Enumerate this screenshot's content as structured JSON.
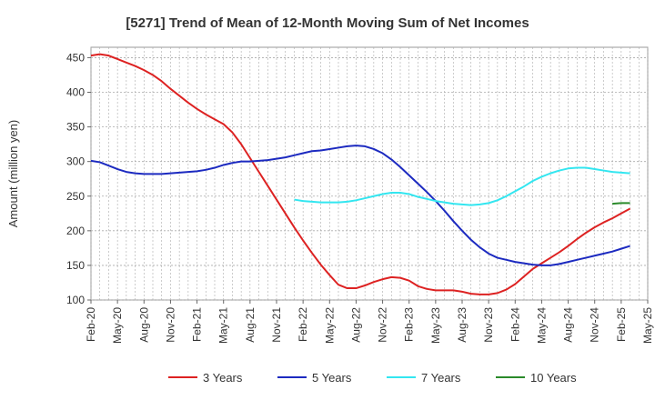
{
  "chart_data": {
    "type": "line",
    "title": "[5271]  Trend of Mean of 12-Month Moving Sum of Net Incomes",
    "xlabel": "",
    "ylabel": "Amount (million yen)",
    "ylim": [
      100,
      465
    ],
    "yticks": [
      100,
      150,
      200,
      250,
      300,
      350,
      400,
      450
    ],
    "xlim": [
      "2020-02",
      "2025-05"
    ],
    "xticks": [
      "Feb-20",
      "May-20",
      "Aug-20",
      "Nov-20",
      "Feb-21",
      "May-21",
      "Aug-21",
      "Nov-21",
      "Feb-22",
      "May-22",
      "Aug-22",
      "Nov-22",
      "Feb-23",
      "May-23",
      "Aug-23",
      "Nov-23",
      "Feb-24",
      "May-24",
      "Aug-24",
      "Nov-24",
      "Feb-25",
      "May-25"
    ],
    "grid": true,
    "legend_position": "bottom",
    "series": [
      {
        "name": "3 Years",
        "color": "#dd2222",
        "points": [
          [
            "2020-02",
            453
          ],
          [
            "2020-03",
            455
          ],
          [
            "2020-04",
            453
          ],
          [
            "2020-05",
            448
          ],
          [
            "2020-06",
            443
          ],
          [
            "2020-07",
            438
          ],
          [
            "2020-08",
            432
          ],
          [
            "2020-09",
            425
          ],
          [
            "2020-10",
            416
          ],
          [
            "2020-11",
            405
          ],
          [
            "2020-12",
            395
          ],
          [
            "2021-01",
            385
          ],
          [
            "2021-02",
            376
          ],
          [
            "2021-03",
            368
          ],
          [
            "2021-04",
            361
          ],
          [
            "2021-05",
            354
          ],
          [
            "2021-06",
            342
          ],
          [
            "2021-07",
            325
          ],
          [
            "2021-08",
            305
          ],
          [
            "2021-09",
            285
          ],
          [
            "2021-10",
            265
          ],
          [
            "2021-11",
            245
          ],
          [
            "2021-12",
            225
          ],
          [
            "2022-01",
            205
          ],
          [
            "2022-02",
            186
          ],
          [
            "2022-03",
            168
          ],
          [
            "2022-04",
            151
          ],
          [
            "2022-05",
            136
          ],
          [
            "2022-06",
            122
          ],
          [
            "2022-07",
            117
          ],
          [
            "2022-08",
            117
          ],
          [
            "2022-09",
            121
          ],
          [
            "2022-10",
            126
          ],
          [
            "2022-11",
            130
          ],
          [
            "2022-12",
            133
          ],
          [
            "2023-01",
            132
          ],
          [
            "2023-02",
            128
          ],
          [
            "2023-03",
            120
          ],
          [
            "2023-04",
            116
          ],
          [
            "2023-05",
            114
          ],
          [
            "2023-06",
            114
          ],
          [
            "2023-07",
            114
          ],
          [
            "2023-08",
            112
          ],
          [
            "2023-09",
            109
          ],
          [
            "2023-10",
            108
          ],
          [
            "2023-11",
            108
          ],
          [
            "2023-12",
            110
          ],
          [
            "2024-01",
            115
          ],
          [
            "2024-02",
            123
          ],
          [
            "2024-03",
            134
          ],
          [
            "2024-04",
            145
          ],
          [
            "2024-05",
            153
          ],
          [
            "2024-06",
            161
          ],
          [
            "2024-07",
            169
          ],
          [
            "2024-08",
            178
          ],
          [
            "2024-09",
            188
          ],
          [
            "2024-10",
            197
          ],
          [
            "2024-11",
            205
          ],
          [
            "2024-12",
            212
          ],
          [
            "2025-01",
            218
          ],
          [
            "2025-02",
            225
          ],
          [
            "2025-03",
            232
          ]
        ]
      },
      {
        "name": "5 Years",
        "color": "#1c2ac0",
        "points": [
          [
            "2020-02",
            301
          ],
          [
            "2020-03",
            299
          ],
          [
            "2020-04",
            294
          ],
          [
            "2020-05",
            289
          ],
          [
            "2020-06",
            285
          ],
          [
            "2020-07",
            283
          ],
          [
            "2020-08",
            282
          ],
          [
            "2020-09",
            282
          ],
          [
            "2020-10",
            282
          ],
          [
            "2020-11",
            283
          ],
          [
            "2020-12",
            284
          ],
          [
            "2021-01",
            285
          ],
          [
            "2021-02",
            286
          ],
          [
            "2021-03",
            288
          ],
          [
            "2021-04",
            291
          ],
          [
            "2021-05",
            295
          ],
          [
            "2021-06",
            298
          ],
          [
            "2021-07",
            300
          ],
          [
            "2021-08",
            300
          ],
          [
            "2021-09",
            301
          ],
          [
            "2021-10",
            302
          ],
          [
            "2021-11",
            304
          ],
          [
            "2021-12",
            306
          ],
          [
            "2022-01",
            309
          ],
          [
            "2022-02",
            312
          ],
          [
            "2022-03",
            315
          ],
          [
            "2022-04",
            316
          ],
          [
            "2022-05",
            318
          ],
          [
            "2022-06",
            320
          ],
          [
            "2022-07",
            322
          ],
          [
            "2022-08",
            323
          ],
          [
            "2022-09",
            322
          ],
          [
            "2022-10",
            318
          ],
          [
            "2022-11",
            312
          ],
          [
            "2022-12",
            303
          ],
          [
            "2023-01",
            292
          ],
          [
            "2023-02",
            280
          ],
          [
            "2023-03",
            268
          ],
          [
            "2023-04",
            256
          ],
          [
            "2023-05",
            243
          ],
          [
            "2023-06",
            229
          ],
          [
            "2023-07",
            214
          ],
          [
            "2023-08",
            200
          ],
          [
            "2023-09",
            187
          ],
          [
            "2023-10",
            176
          ],
          [
            "2023-11",
            167
          ],
          [
            "2023-12",
            161
          ],
          [
            "2024-01",
            158
          ],
          [
            "2024-02",
            155
          ],
          [
            "2024-03",
            153
          ],
          [
            "2024-04",
            151
          ],
          [
            "2024-05",
            150
          ],
          [
            "2024-06",
            150
          ],
          [
            "2024-07",
            152
          ],
          [
            "2024-08",
            155
          ],
          [
            "2024-09",
            158
          ],
          [
            "2024-10",
            161
          ],
          [
            "2024-11",
            164
          ],
          [
            "2024-12",
            167
          ],
          [
            "2025-01",
            170
          ],
          [
            "2025-02",
            174
          ],
          [
            "2025-03",
            178
          ]
        ]
      },
      {
        "name": "7 Years",
        "color": "#33e6f0",
        "points": [
          [
            "2022-01",
            245
          ],
          [
            "2022-02",
            243
          ],
          [
            "2022-03",
            242
          ],
          [
            "2022-04",
            241
          ],
          [
            "2022-05",
            241
          ],
          [
            "2022-06",
            241
          ],
          [
            "2022-07",
            242
          ],
          [
            "2022-08",
            244
          ],
          [
            "2022-09",
            247
          ],
          [
            "2022-10",
            250
          ],
          [
            "2022-11",
            253
          ],
          [
            "2022-12",
            255
          ],
          [
            "2023-01",
            255
          ],
          [
            "2023-02",
            253
          ],
          [
            "2023-03",
            249
          ],
          [
            "2023-04",
            246
          ],
          [
            "2023-05",
            243
          ],
          [
            "2023-06",
            241
          ],
          [
            "2023-07",
            239
          ],
          [
            "2023-08",
            238
          ],
          [
            "2023-09",
            237
          ],
          [
            "2023-10",
            238
          ],
          [
            "2023-11",
            240
          ],
          [
            "2023-12",
            244
          ],
          [
            "2024-01",
            250
          ],
          [
            "2024-02",
            257
          ],
          [
            "2024-03",
            264
          ],
          [
            "2024-04",
            272
          ],
          [
            "2024-05",
            278
          ],
          [
            "2024-06",
            283
          ],
          [
            "2024-07",
            287
          ],
          [
            "2024-08",
            290
          ],
          [
            "2024-09",
            291
          ],
          [
            "2024-10",
            291
          ],
          [
            "2024-11",
            289
          ],
          [
            "2024-12",
            287
          ],
          [
            "2025-01",
            285
          ],
          [
            "2025-02",
            284
          ],
          [
            "2025-03",
            283
          ]
        ]
      },
      {
        "name": "10 Years",
        "color": "#2a8a2a",
        "points": [
          [
            "2025-01",
            239
          ],
          [
            "2025-02",
            240
          ],
          [
            "2025-03",
            240
          ]
        ]
      }
    ]
  }
}
